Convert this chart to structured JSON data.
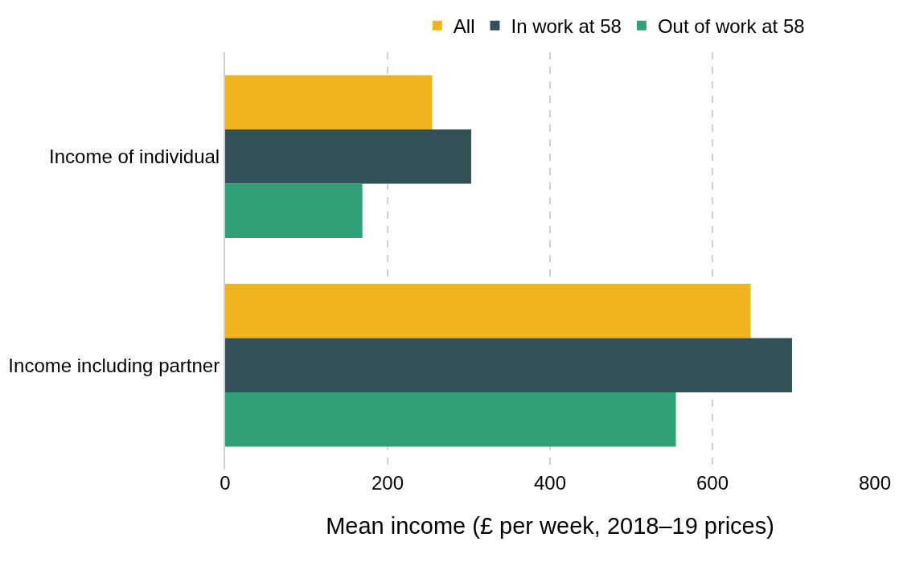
{
  "chart_data": {
    "type": "bar",
    "orientation": "horizontal",
    "categories": [
      "Income of individual",
      "Income including partner"
    ],
    "series": [
      {
        "name": "All",
        "color": "#f0b41c",
        "values": [
          255,
          647
        ]
      },
      {
        "name": "In work at 58",
        "color": "#335056",
        "values": [
          303,
          698
        ]
      },
      {
        "name": "Out of work at 58",
        "color": "#31a077",
        "values": [
          169,
          555
        ]
      }
    ],
    "xlabel": "Mean income (£ per week, 2018–19 prices)",
    "xlim": [
      0,
      800
    ],
    "xticks": [
      0,
      200,
      400,
      600,
      800
    ],
    "grid": "x",
    "legend": "top"
  }
}
